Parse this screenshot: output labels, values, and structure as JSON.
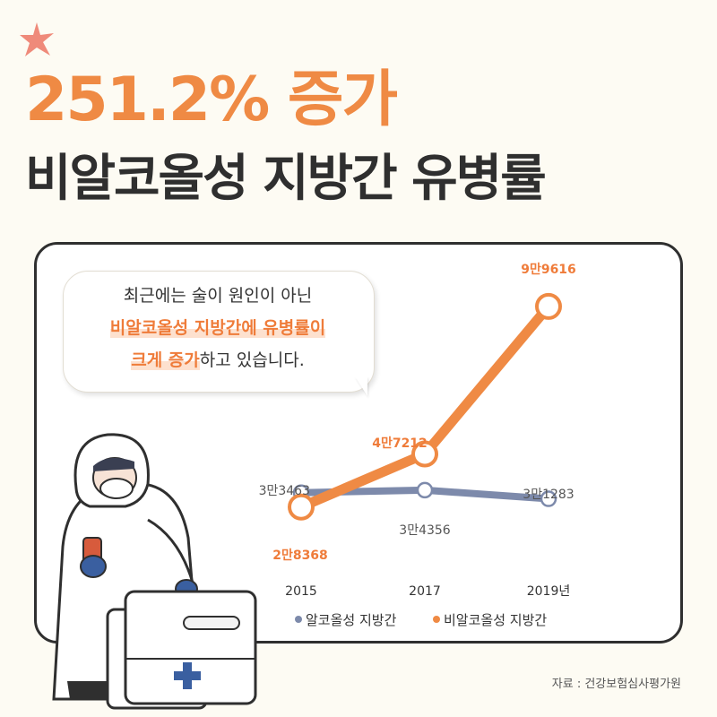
{
  "header": {
    "headline": "251.2% 증가",
    "subhead": "비알코올성 지방간 유병률"
  },
  "bubble": {
    "line1": "최근에는 술이 원인이 아닌",
    "line2_highlight": "비알코올성 지방간에 유병률이",
    "line3_highlight": "크게 증가",
    "line3_rest": "하고 있습니다."
  },
  "colors": {
    "accent": "#ef8a44",
    "alcoholic_series": "#7d8aab",
    "card_border": "#2f2f2f",
    "background": "#fdfbf3"
  },
  "chart_data": {
    "type": "line",
    "categories": [
      "2015",
      "2017",
      "2019년"
    ],
    "series": [
      {
        "name": "알코올성 지방간",
        "values": [
          33463,
          34356,
          31283
        ],
        "labels": [
          "3만3463",
          "3만4356",
          "3만1283"
        ],
        "color": "#7d8aab"
      },
      {
        "name": "비알코올성 지방간",
        "values": [
          28368,
          47212,
          99616
        ],
        "labels": [
          "2만8368",
          "4만7212",
          "9만9616"
        ],
        "color": "#ef8a44"
      }
    ],
    "ylim": [
      20000,
      105000
    ],
    "legend_position": "bottom",
    "grid": false
  },
  "source": "자료 : 건강보험심사평가원"
}
